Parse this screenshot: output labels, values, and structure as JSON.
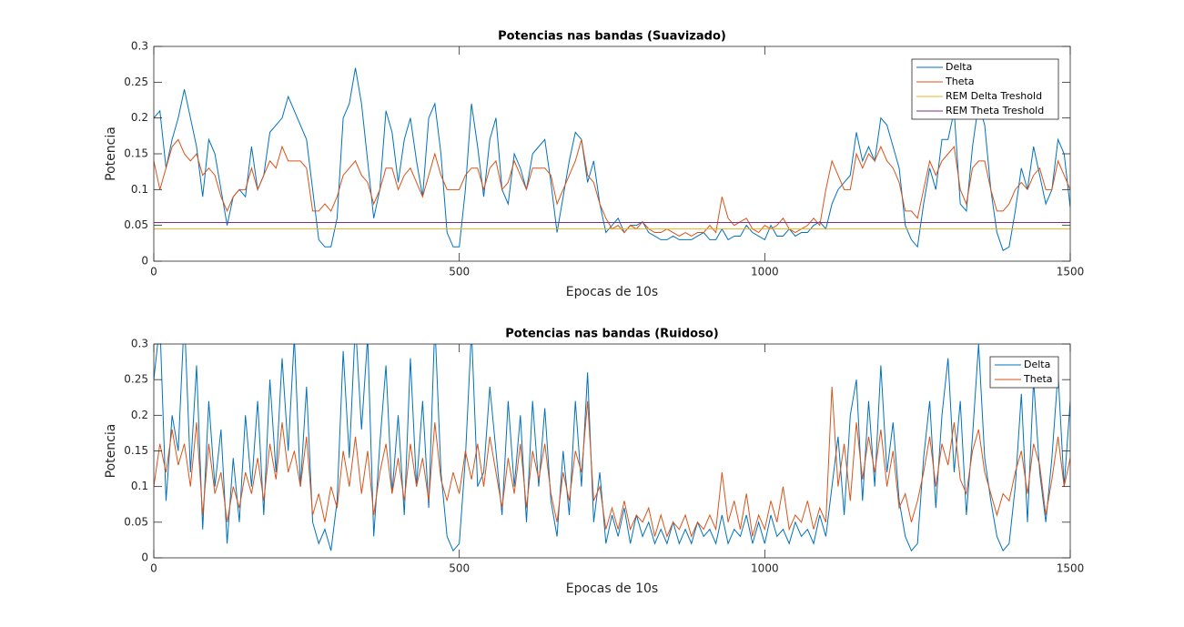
{
  "chart_data": [
    {
      "type": "line",
      "title": "Potencias nas bandas (Suavizado)",
      "xlabel": "Epocas de 10s",
      "ylabel": "Potencia",
      "xlim": [
        0,
        1500
      ],
      "ylim": [
        0,
        0.3
      ],
      "xticks": [
        0,
        500,
        1000,
        1500
      ],
      "yticks": [
        0,
        0.05,
        0.1,
        0.15,
        0.2,
        0.25,
        0.3
      ],
      "legend": "northeast",
      "x": [
        0,
        10,
        20,
        30,
        40,
        50,
        60,
        70,
        80,
        90,
        100,
        110,
        120,
        130,
        140,
        150,
        160,
        170,
        180,
        190,
        200,
        210,
        220,
        230,
        240,
        250,
        260,
        270,
        280,
        290,
        300,
        310,
        320,
        330,
        340,
        350,
        360,
        370,
        380,
        390,
        400,
        410,
        420,
        430,
        440,
        450,
        460,
        470,
        480,
        490,
        500,
        510,
        520,
        530,
        540,
        550,
        560,
        570,
        580,
        590,
        600,
        610,
        620,
        630,
        640,
        650,
        660,
        670,
        680,
        690,
        700,
        710,
        720,
        730,
        740,
        750,
        760,
        770,
        780,
        790,
        800,
        810,
        820,
        830,
        840,
        850,
        860,
        870,
        880,
        890,
        900,
        910,
        920,
        930,
        940,
        950,
        960,
        970,
        980,
        990,
        1000,
        1010,
        1020,
        1030,
        1040,
        1050,
        1060,
        1070,
        1080,
        1090,
        1100,
        1110,
        1120,
        1130,
        1140,
        1150,
        1160,
        1170,
        1180,
        1190,
        1200,
        1210,
        1220,
        1230,
        1240,
        1250,
        1260,
        1270,
        1280,
        1290,
        1300,
        1310,
        1320,
        1330,
        1340,
        1350,
        1360,
        1370,
        1380,
        1390,
        1400,
        1410,
        1420,
        1430,
        1440,
        1450,
        1460,
        1470,
        1480,
        1490,
        1500
      ],
      "series": [
        {
          "name": "Delta",
          "color": "#0072bd",
          "values": [
            0.2,
            0.21,
            0.13,
            0.17,
            0.2,
            0.24,
            0.2,
            0.16,
            0.09,
            0.17,
            0.15,
            0.1,
            0.05,
            0.09,
            0.1,
            0.09,
            0.16,
            0.1,
            0.12,
            0.18,
            0.19,
            0.2,
            0.23,
            0.21,
            0.19,
            0.17,
            0.1,
            0.03,
            0.02,
            0.02,
            0.06,
            0.2,
            0.22,
            0.27,
            0.22,
            0.14,
            0.06,
            0.1,
            0.21,
            0.18,
            0.11,
            0.17,
            0.2,
            0.14,
            0.09,
            0.2,
            0.22,
            0.15,
            0.04,
            0.02,
            0.02,
            0.1,
            0.22,
            0.16,
            0.09,
            0.17,
            0.2,
            0.1,
            0.08,
            0.15,
            0.13,
            0.1,
            0.15,
            0.16,
            0.17,
            0.11,
            0.04,
            0.09,
            0.14,
            0.18,
            0.17,
            0.11,
            0.14,
            0.08,
            0.04,
            0.05,
            0.06,
            0.04,
            0.05,
            0.05,
            0.055,
            0.04,
            0.035,
            0.03,
            0.03,
            0.035,
            0.03,
            0.03,
            0.03,
            0.035,
            0.04,
            0.03,
            0.03,
            0.045,
            0.03,
            0.035,
            0.035,
            0.05,
            0.04,
            0.035,
            0.03,
            0.05,
            0.035,
            0.035,
            0.045,
            0.035,
            0.04,
            0.04,
            0.05,
            0.055,
            0.045,
            0.08,
            0.1,
            0.11,
            0.12,
            0.18,
            0.14,
            0.16,
            0.14,
            0.2,
            0.19,
            0.16,
            0.13,
            0.05,
            0.03,
            0.02,
            0.08,
            0.13,
            0.1,
            0.17,
            0.17,
            0.21,
            0.08,
            0.07,
            0.16,
            0.22,
            0.19,
            0.1,
            0.04,
            0.015,
            0.02,
            0.07,
            0.13,
            0.1,
            0.16,
            0.12,
            0.08,
            0.1,
            0.17,
            0.15,
            0.075
          ]
        },
        {
          "name": "Theta",
          "color": "#d95319",
          "values": [
            0.14,
            0.1,
            0.13,
            0.16,
            0.17,
            0.15,
            0.14,
            0.15,
            0.12,
            0.13,
            0.12,
            0.09,
            0.07,
            0.09,
            0.1,
            0.1,
            0.13,
            0.1,
            0.12,
            0.14,
            0.13,
            0.16,
            0.14,
            0.14,
            0.14,
            0.13,
            0.07,
            0.07,
            0.08,
            0.07,
            0.09,
            0.12,
            0.13,
            0.14,
            0.12,
            0.11,
            0.08,
            0.1,
            0.13,
            0.13,
            0.1,
            0.12,
            0.13,
            0.11,
            0.09,
            0.12,
            0.15,
            0.12,
            0.1,
            0.1,
            0.1,
            0.12,
            0.13,
            0.13,
            0.1,
            0.13,
            0.14,
            0.1,
            0.11,
            0.14,
            0.12,
            0.1,
            0.13,
            0.13,
            0.13,
            0.12,
            0.08,
            0.1,
            0.12,
            0.14,
            0.17,
            0.12,
            0.11,
            0.08,
            0.06,
            0.045,
            0.05,
            0.04,
            0.05,
            0.045,
            0.055,
            0.045,
            0.04,
            0.04,
            0.045,
            0.04,
            0.035,
            0.04,
            0.035,
            0.04,
            0.04,
            0.05,
            0.04,
            0.09,
            0.06,
            0.05,
            0.055,
            0.06,
            0.045,
            0.04,
            0.05,
            0.045,
            0.05,
            0.06,
            0.045,
            0.04,
            0.045,
            0.05,
            0.06,
            0.05,
            0.1,
            0.14,
            0.12,
            0.1,
            0.1,
            0.15,
            0.13,
            0.15,
            0.14,
            0.16,
            0.14,
            0.13,
            0.11,
            0.07,
            0.07,
            0.06,
            0.1,
            0.14,
            0.12,
            0.14,
            0.15,
            0.16,
            0.1,
            0.08,
            0.13,
            0.14,
            0.14,
            0.1,
            0.07,
            0.07,
            0.08,
            0.1,
            0.11,
            0.1,
            0.12,
            0.13,
            0.1,
            0.1,
            0.14,
            0.12,
            0.1
          ]
        },
        {
          "name": "REM Delta Treshold",
          "color": "#edb120",
          "x": [
            0,
            1500
          ],
          "values": [
            0.045,
            0.045
          ]
        },
        {
          "name": "REM Theta Treshold",
          "color": "#7e2f8e",
          "x": [
            0,
            1500
          ],
          "values": [
            0.054,
            0.054
          ]
        }
      ]
    },
    {
      "type": "line",
      "title": "Potencias nas bandas (Ruidoso)",
      "xlabel": "Epocas de 10s",
      "ylabel": "Potencia",
      "xlim": [
        0,
        1500
      ],
      "ylim": [
        0,
        0.3
      ],
      "xticks": [
        0,
        500,
        1000,
        1500
      ],
      "yticks": [
        0,
        0.05,
        0.1,
        0.15,
        0.2,
        0.25,
        0.3
      ],
      "legend": "northeast",
      "x": [
        0,
        10,
        20,
        30,
        40,
        50,
        60,
        70,
        80,
        90,
        100,
        110,
        120,
        130,
        140,
        150,
        160,
        170,
        180,
        190,
        200,
        210,
        220,
        230,
        240,
        250,
        260,
        270,
        280,
        290,
        300,
        310,
        320,
        330,
        340,
        350,
        360,
        370,
        380,
        390,
        400,
        410,
        420,
        430,
        440,
        450,
        460,
        470,
        480,
        490,
        500,
        510,
        520,
        530,
        540,
        550,
        560,
        570,
        580,
        590,
        600,
        610,
        620,
        630,
        640,
        650,
        660,
        670,
        680,
        690,
        700,
        710,
        720,
        730,
        740,
        750,
        760,
        770,
        780,
        790,
        800,
        810,
        820,
        830,
        840,
        850,
        860,
        870,
        880,
        890,
        900,
        910,
        920,
        930,
        940,
        950,
        960,
        970,
        980,
        990,
        1000,
        1010,
        1020,
        1030,
        1040,
        1050,
        1060,
        1070,
        1080,
        1090,
        1100,
        1110,
        1120,
        1130,
        1140,
        1150,
        1160,
        1170,
        1180,
        1190,
        1200,
        1210,
        1220,
        1230,
        1240,
        1250,
        1260,
        1270,
        1280,
        1290,
        1300,
        1310,
        1320,
        1330,
        1340,
        1350,
        1360,
        1370,
        1380,
        1390,
        1400,
        1410,
        1420,
        1430,
        1440,
        1450,
        1460,
        1470,
        1480,
        1490,
        1500
      ],
      "series": [
        {
          "name": "Delta",
          "color": "#0072bd",
          "values": [
            0.25,
            0.33,
            0.08,
            0.2,
            0.15,
            0.34,
            0.12,
            0.27,
            0.04,
            0.22,
            0.1,
            0.18,
            0.02,
            0.14,
            0.05,
            0.2,
            0.1,
            0.22,
            0.06,
            0.25,
            0.12,
            0.28,
            0.15,
            0.31,
            0.1,
            0.24,
            0.05,
            0.02,
            0.04,
            0.01,
            0.08,
            0.29,
            0.14,
            0.33,
            0.18,
            0.31,
            0.03,
            0.16,
            0.27,
            0.09,
            0.2,
            0.06,
            0.28,
            0.1,
            0.22,
            0.07,
            0.33,
            0.12,
            0.03,
            0.01,
            0.02,
            0.14,
            0.32,
            0.1,
            0.12,
            0.24,
            0.15,
            0.06,
            0.22,
            0.1,
            0.2,
            0.05,
            0.22,
            0.1,
            0.21,
            0.08,
            0.03,
            0.15,
            0.06,
            0.22,
            0.1,
            0.26,
            0.05,
            0.12,
            0.02,
            0.06,
            0.03,
            0.07,
            0.02,
            0.06,
            0.03,
            0.05,
            0.02,
            0.04,
            0.02,
            0.05,
            0.02,
            0.04,
            0.02,
            0.05,
            0.03,
            0.04,
            0.02,
            0.06,
            0.02,
            0.04,
            0.03,
            0.06,
            0.02,
            0.05,
            0.02,
            0.06,
            0.03,
            0.04,
            0.02,
            0.05,
            0.03,
            0.04,
            0.02,
            0.06,
            0.03,
            0.1,
            0.17,
            0.06,
            0.2,
            0.25,
            0.08,
            0.22,
            0.1,
            0.27,
            0.12,
            0.19,
            0.08,
            0.03,
            0.01,
            0.02,
            0.14,
            0.22,
            0.07,
            0.2,
            0.28,
            0.12,
            0.22,
            0.06,
            0.17,
            0.3,
            0.14,
            0.08,
            0.03,
            0.01,
            0.02,
            0.1,
            0.23,
            0.05,
            0.25,
            0.12,
            0.05,
            0.14,
            0.26,
            0.1,
            0.22
          ]
        },
        {
          "name": "Theta",
          "color": "#d95319",
          "values": [
            0.1,
            0.16,
            0.12,
            0.18,
            0.13,
            0.16,
            0.1,
            0.19,
            0.06,
            0.16,
            0.09,
            0.12,
            0.05,
            0.1,
            0.07,
            0.12,
            0.09,
            0.14,
            0.08,
            0.16,
            0.11,
            0.19,
            0.12,
            0.15,
            0.1,
            0.17,
            0.06,
            0.09,
            0.05,
            0.1,
            0.07,
            0.15,
            0.1,
            0.17,
            0.09,
            0.15,
            0.06,
            0.12,
            0.16,
            0.09,
            0.14,
            0.08,
            0.16,
            0.1,
            0.14,
            0.08,
            0.19,
            0.11,
            0.08,
            0.12,
            0.09,
            0.15,
            0.11,
            0.16,
            0.1,
            0.17,
            0.12,
            0.07,
            0.14,
            0.09,
            0.16,
            0.07,
            0.15,
            0.11,
            0.16,
            0.09,
            0.05,
            0.12,
            0.08,
            0.15,
            0.12,
            0.22,
            0.08,
            0.1,
            0.04,
            0.07,
            0.04,
            0.08,
            0.04,
            0.06,
            0.05,
            0.07,
            0.03,
            0.06,
            0.03,
            0.05,
            0.04,
            0.06,
            0.03,
            0.05,
            0.04,
            0.06,
            0.04,
            0.12,
            0.05,
            0.08,
            0.04,
            0.09,
            0.03,
            0.06,
            0.04,
            0.08,
            0.05,
            0.1,
            0.04,
            0.06,
            0.05,
            0.08,
            0.04,
            0.07,
            0.05,
            0.24,
            0.1,
            0.16,
            0.08,
            0.19,
            0.11,
            0.17,
            0.12,
            0.18,
            0.1,
            0.15,
            0.07,
            0.09,
            0.05,
            0.08,
            0.12,
            0.17,
            0.1,
            0.16,
            0.13,
            0.19,
            0.11,
            0.09,
            0.15,
            0.18,
            0.12,
            0.09,
            0.06,
            0.09,
            0.08,
            0.12,
            0.15,
            0.09,
            0.16,
            0.13,
            0.06,
            0.11,
            0.17,
            0.1,
            0.14
          ]
        }
      ]
    }
  ]
}
